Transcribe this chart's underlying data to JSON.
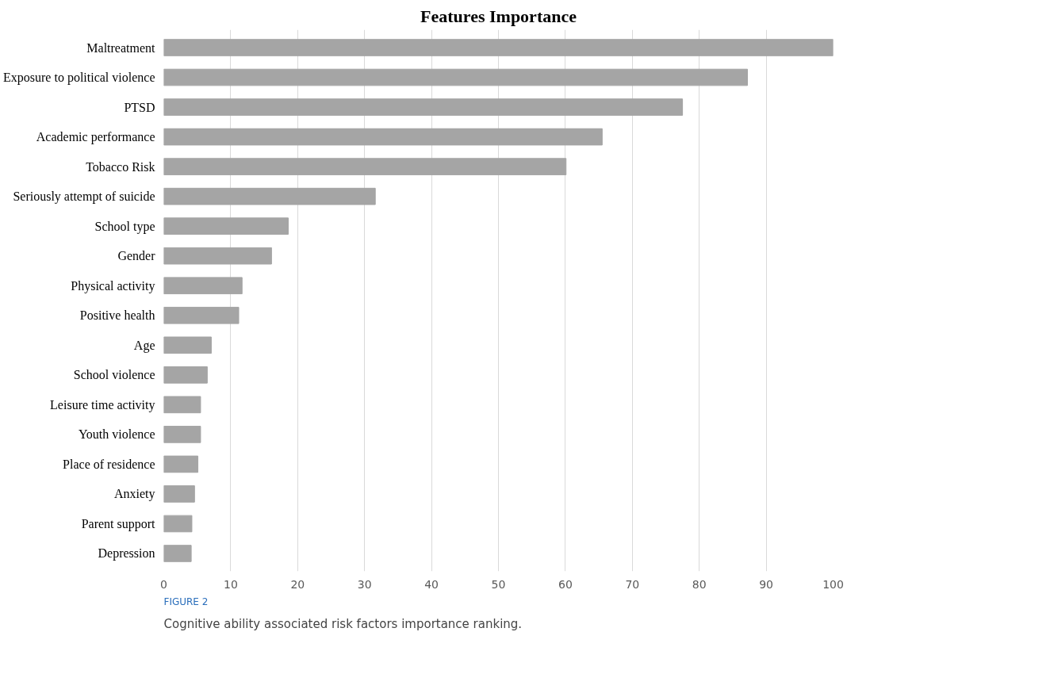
{
  "chart_data": {
    "type": "bar",
    "orientation": "horizontal",
    "title": "Features Importance",
    "categories": [
      "Maltreatment",
      "Exposure to political violence",
      "PTSD",
      "Academic performance",
      "Tobacco Risk",
      "Seriously attempt of suicide",
      "School type",
      "Gender",
      "Physical activity",
      "Positive health",
      "Age",
      "School violence",
      "Leisure time activity",
      "Youth violence",
      "Place of residence",
      "Anxiety",
      "Parent support",
      "Depression"
    ],
    "values": [
      100,
      87.2,
      77.5,
      65.5,
      60.1,
      31.6,
      18.6,
      16.1,
      11.7,
      11.2,
      7.1,
      6.5,
      5.5,
      5.5,
      5.1,
      4.6,
      4.2,
      4.1
    ],
    "color": "#a5a5a5",
    "xlim": [
      0,
      100
    ],
    "xticks": [
      0,
      10,
      20,
      30,
      40,
      50,
      60,
      70,
      80,
      90,
      100
    ],
    "grid": "x",
    "annotations": [
      "FIGURE 2",
      "Cognitive ability associated risk factors importance ranking."
    ]
  }
}
